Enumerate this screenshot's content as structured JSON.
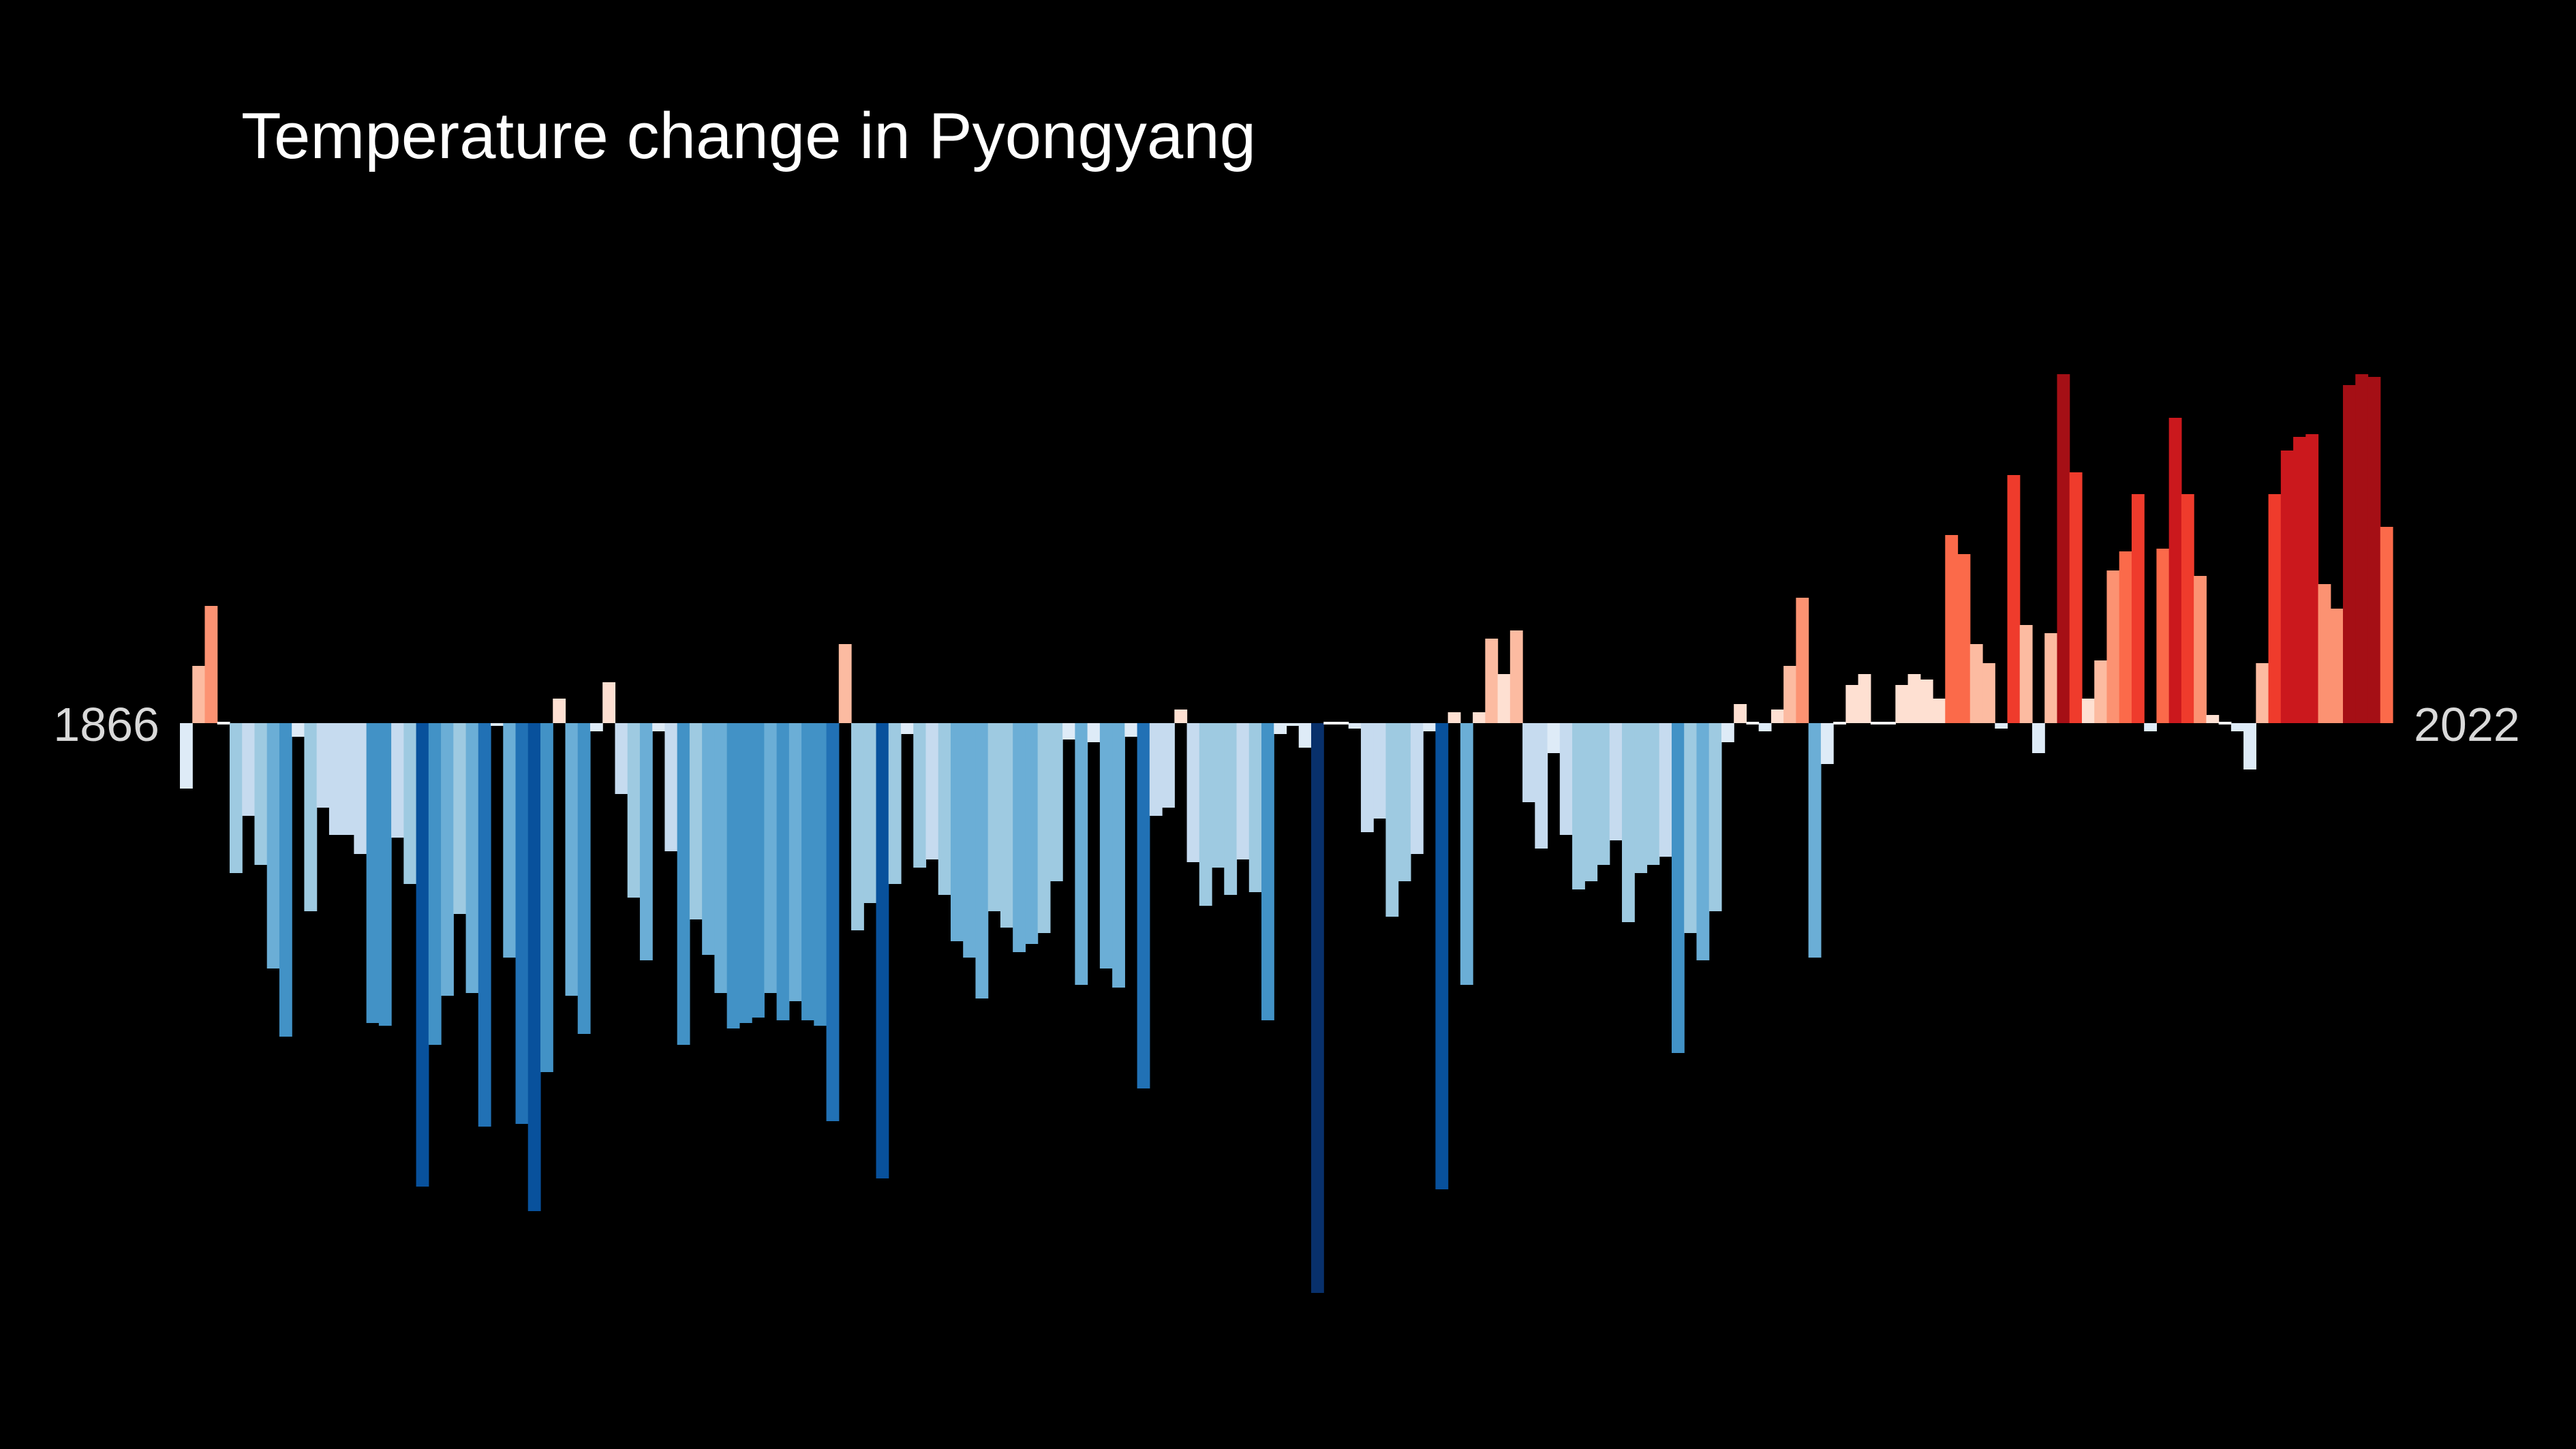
{
  "chart_data": {
    "type": "bar",
    "title": "Temperature change in Pyongyang",
    "x_start_label": "1866",
    "x_end_label": "2022",
    "x_start": 1866,
    "x_end": 2022,
    "baseline": 0,
    "ylim": [
      -2.1,
      1.3
    ],
    "grid": false,
    "legend": "none",
    "values": [
      -0.24,
      0.21,
      0.43,
      0.0,
      -0.55,
      -0.34,
      -0.52,
      -0.9,
      -1.15,
      -0.05,
      -0.69,
      -0.31,
      -0.41,
      -0.41,
      -0.48,
      -1.1,
      -1.11,
      -0.42,
      -0.59,
      -1.7,
      -1.18,
      -1.0,
      -0.7,
      -0.99,
      -1.48,
      -0.01,
      -0.86,
      -1.47,
      -1.79,
      -1.28,
      0.09,
      -1.0,
      -1.14,
      -0.03,
      0.15,
      -0.26,
      -0.64,
      -0.87,
      -0.03,
      -0.47,
      -1.18,
      -0.72,
      -0.85,
      -0.99,
      -1.12,
      -1.1,
      -1.08,
      -0.99,
      -1.09,
      -1.02,
      -1.09,
      -1.11,
      -1.46,
      0.29,
      -0.76,
      -0.66,
      -1.67,
      -0.59,
      -0.04,
      -0.53,
      -0.5,
      -0.63,
      -0.8,
      -0.86,
      -1.01,
      -0.69,
      -0.75,
      -0.84,
      -0.81,
      -0.77,
      -0.58,
      -0.06,
      -0.96,
      -0.07,
      -0.9,
      -0.97,
      -0.05,
      -1.34,
      -0.34,
      -0.31,
      0.05,
      -0.51,
      -0.67,
      -0.53,
      -0.63,
      -0.5,
      -0.62,
      -1.09,
      -0.04,
      -0.01,
      -0.09,
      -2.09,
      0.0,
      0.0,
      -0.02,
      -0.4,
      -0.35,
      -0.71,
      -0.58,
      -0.48,
      -0.03,
      -1.71,
      0.04,
      -0.96,
      0.04,
      0.31,
      0.18,
      0.34,
      -0.29,
      -0.46,
      -0.11,
      -0.41,
      -0.61,
      -0.58,
      -0.52,
      -0.43,
      -0.73,
      -0.55,
      -0.52,
      -0.49,
      -1.21,
      -0.77,
      -0.87,
      -0.69,
      -0.07,
      0.07,
      0.0,
      -0.03,
      0.05,
      0.21,
      0.46,
      -0.86,
      -0.15,
      0.0,
      0.14,
      0.18,
      0.0,
      0.0,
      0.14,
      0.18,
      0.16,
      0.09,
      0.69,
      0.62,
      0.29,
      0.22,
      -0.02,
      0.91,
      0.36,
      -0.11,
      0.33,
      1.28,
      0.92,
      0.09,
      0.23,
      0.56,
      0.63,
      0.84,
      -0.03,
      0.64,
      1.12,
      0.84,
      0.54,
      0.03,
      0.0,
      -0.03,
      -0.17,
      0.22,
      0.84,
      1.0,
      1.05,
      1.06,
      0.51,
      0.42,
      1.24,
      1.28,
      1.27,
      0.72
    ],
    "colors": {
      "background": "#000000",
      "title": "#ffffff",
      "year_labels": "#d9d9d9"
    }
  }
}
